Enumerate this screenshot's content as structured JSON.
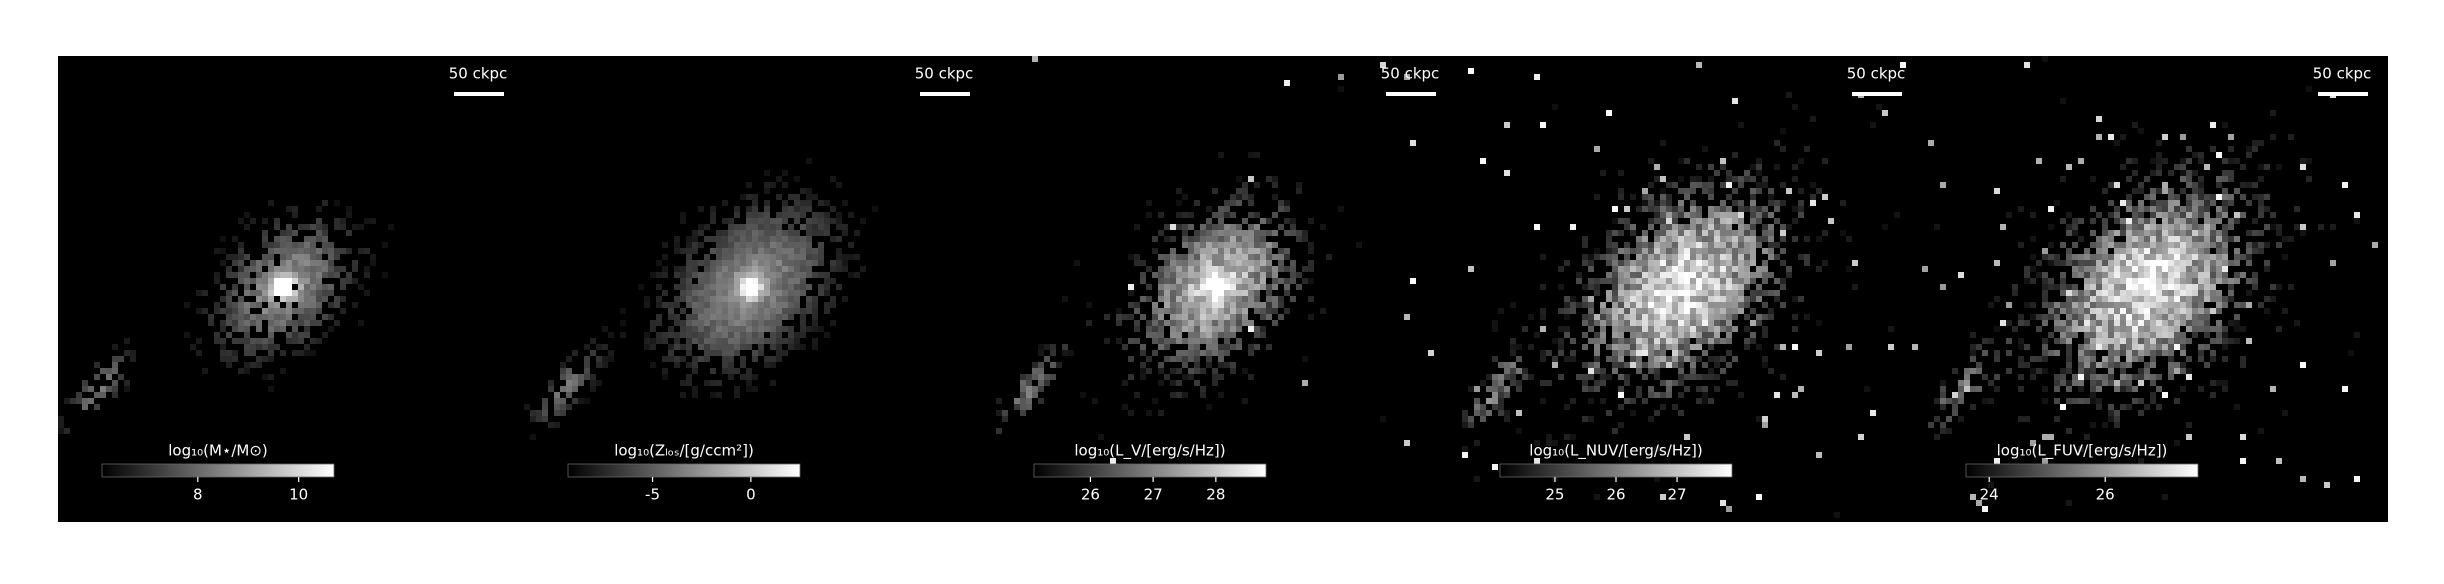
{
  "chart_data": [
    {
      "type": "image",
      "scalebar_label": "50 ckpc",
      "colorbar_label": "log₁₀(M⋆/M⊙)",
      "clim": [
        6.1,
        10.7
      ],
      "cticks": [
        8,
        10
      ],
      "colormap": [
        "#000000",
        "#ffffff"
      ]
    },
    {
      "type": "image",
      "scalebar_label": "50 ckpc",
      "colorbar_label": "log₁₀(Zₗₒₛ/[g/ccm²])",
      "clim": [
        -9.3,
        2.5
      ],
      "cticks": [
        -5,
        0
      ],
      "colormap": [
        "#000000",
        "#ffffff"
      ]
    },
    {
      "type": "image",
      "scalebar_label": "50 ckpc",
      "colorbar_label": "log₁₀(L_V/[erg/s/Hz])",
      "clim": [
        25.1,
        28.8
      ],
      "cticks": [
        26,
        27,
        28
      ],
      "colormap": [
        "#000000",
        "#ffffff"
      ]
    },
    {
      "type": "image",
      "scalebar_label": "50 ckpc",
      "colorbar_label": "log₁₀(L_NUV/[erg/s/Hz])",
      "clim": [
        24.1,
        27.9
      ],
      "cticks": [
        25,
        26,
        27
      ],
      "colormap": [
        "#000000",
        "#ffffff"
      ]
    },
    {
      "type": "image",
      "scalebar_label": "50 ckpc",
      "colorbar_label": "log₁₀(L_FUV/[erg/s/Hz])",
      "clim": [
        23.6,
        27.6
      ],
      "cticks": [
        24,
        26
      ],
      "colormap": [
        "#000000",
        "#ffffff"
      ]
    }
  ]
}
